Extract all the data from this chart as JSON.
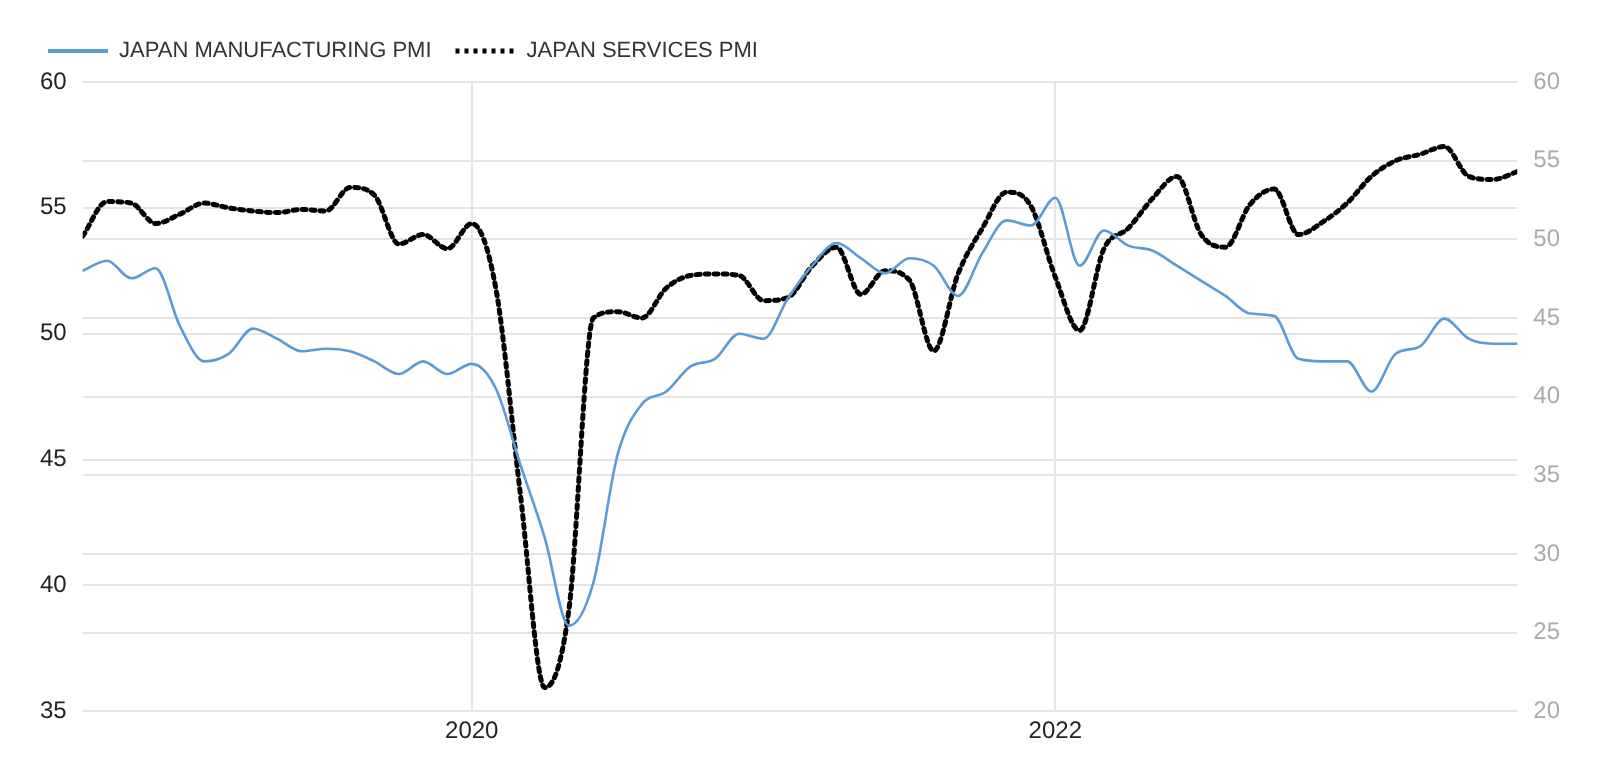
{
  "chart_data": {
    "type": "line",
    "x": [
      "2018-09",
      "2018-10",
      "2018-11",
      "2018-12",
      "2019-01",
      "2019-02",
      "2019-03",
      "2019-04",
      "2019-05",
      "2019-06",
      "2019-07",
      "2019-08",
      "2019-09",
      "2019-10",
      "2019-11",
      "2019-12",
      "2020-01",
      "2020-02",
      "2020-03",
      "2020-04",
      "2020-05",
      "2020-06",
      "2020-07",
      "2020-08",
      "2020-09",
      "2020-10",
      "2020-11",
      "2020-12",
      "2021-01",
      "2021-02",
      "2021-03",
      "2021-04",
      "2021-05",
      "2021-06",
      "2021-07",
      "2021-08",
      "2021-09",
      "2021-10",
      "2021-11",
      "2021-12",
      "2022-01",
      "2022-02",
      "2022-03",
      "2022-04",
      "2022-05",
      "2022-06",
      "2022-07",
      "2022-08",
      "2022-09",
      "2022-10",
      "2022-11",
      "2022-12",
      "2023-01",
      "2023-02",
      "2023-03",
      "2023-04",
      "2023-05",
      "2023-06",
      "2023-07",
      "2023-08"
    ],
    "series": [
      {
        "name": "JAPAN MANUFACTURING PMI",
        "color": "#5b9bd5",
        "line_style": "solid",
        "values": [
          52.5,
          52.9,
          52.2,
          52.6,
          50.3,
          48.9,
          49.2,
          50.2,
          49.8,
          49.3,
          49.4,
          49.3,
          48.9,
          48.4,
          48.9,
          48.4,
          48.8,
          47.8,
          44.8,
          41.9,
          38.4,
          40.1,
          45.2,
          47.2,
          47.7,
          48.7,
          49.0,
          50.0,
          49.8,
          51.4,
          52.7,
          53.6,
          53.0,
          52.4,
          53.0,
          52.7,
          51.5,
          53.2,
          54.5,
          54.3,
          55.4,
          52.7,
          54.1,
          53.5,
          53.3,
          52.7,
          52.1,
          51.5,
          50.8,
          50.7,
          49.0,
          48.9,
          48.9,
          47.7,
          49.2,
          49.5,
          50.6,
          49.8,
          49.6,
          49.6
        ]
      },
      {
        "name": "JAPAN SERVICES PMI",
        "color": "#000000",
        "line_style": "dotted",
        "axis": "y2",
        "values": [
          50.2,
          52.4,
          52.3,
          51.0,
          51.6,
          52.3,
          52.0,
          51.8,
          51.7,
          51.9,
          51.8,
          53.3,
          52.8,
          49.7,
          50.3,
          49.4,
          51.0,
          46.8,
          33.8,
          21.5,
          26.5,
          45.0,
          45.4,
          45.0,
          46.9,
          47.7,
          47.8,
          47.7,
          46.1,
          46.3,
          48.3,
          49.5,
          46.5,
          48.0,
          47.4,
          42.9,
          47.8,
          50.7,
          53.0,
          52.1,
          47.6,
          44.2,
          49.4,
          50.7,
          52.6,
          54.0,
          50.3,
          49.5,
          52.2,
          53.2,
          50.3,
          51.1,
          52.3,
          54.0,
          55.0,
          55.4,
          55.9,
          54.0,
          53.8,
          54.3
        ]
      }
    ],
    "xlim": [
      "2018-09",
      "2023-08"
    ],
    "xticks": [
      "2020",
      "2022"
    ],
    "ylim": [
      35,
      60
    ],
    "yticks": [
      35,
      40,
      45,
      50,
      55,
      60
    ],
    "y2lim": [
      20,
      60
    ],
    "y2ticks": [
      20,
      25,
      30,
      35,
      40,
      45,
      50,
      55,
      60
    ],
    "grid": true,
    "legend": "top left",
    "marker": "none"
  }
}
